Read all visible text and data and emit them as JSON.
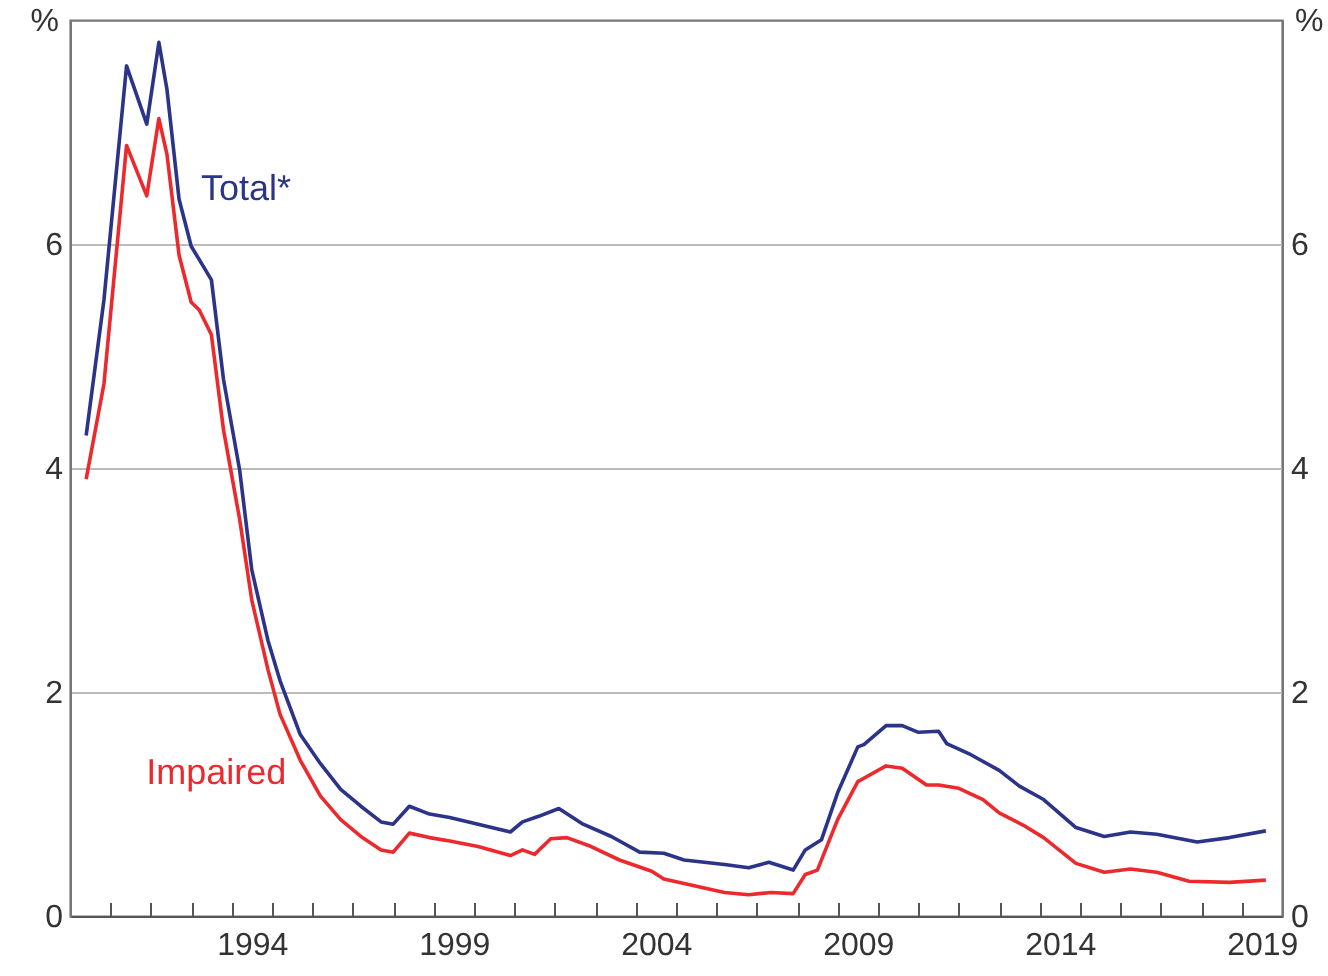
{
  "chart_data": {
    "type": "line",
    "ylabel": "%",
    "y2label": "%",
    "xlim": [
      1990,
      2020
    ],
    "xticks": [
      {
        "value": 1991,
        "label": null
      },
      {
        "value": 1992,
        "label": null
      },
      {
        "value": 1993,
        "label": null
      },
      {
        "value": 1994,
        "label": null
      },
      {
        "value": 1994.5,
        "label": "1994"
      },
      {
        "value": 1995,
        "label": null
      },
      {
        "value": 1996,
        "label": null
      },
      {
        "value": 1997,
        "label": null
      },
      {
        "value": 1998,
        "label": null
      },
      {
        "value": 1999,
        "label": null
      },
      {
        "value": 1999.5,
        "label": "1999"
      },
      {
        "value": 2000,
        "label": null
      },
      {
        "value": 2001,
        "label": null
      },
      {
        "value": 2002,
        "label": null
      },
      {
        "value": 2003,
        "label": null
      },
      {
        "value": 2004,
        "label": null
      },
      {
        "value": 2004.5,
        "label": "2004"
      },
      {
        "value": 2005,
        "label": null
      },
      {
        "value": 2006,
        "label": null
      },
      {
        "value": 2007,
        "label": null
      },
      {
        "value": 2008,
        "label": null
      },
      {
        "value": 2009,
        "label": null
      },
      {
        "value": 2009.5,
        "label": "2009"
      },
      {
        "value": 2010,
        "label": null
      },
      {
        "value": 2011,
        "label": null
      },
      {
        "value": 2012,
        "label": null
      },
      {
        "value": 2013,
        "label": null
      },
      {
        "value": 2014,
        "label": null
      },
      {
        "value": 2014.5,
        "label": "2014"
      },
      {
        "value": 2015,
        "label": null
      },
      {
        "value": 2016,
        "label": null
      },
      {
        "value": 2017,
        "label": null
      },
      {
        "value": 2018,
        "label": null
      },
      {
        "value": 2019,
        "label": null
      },
      {
        "value": 2019.5,
        "label": "2019"
      }
    ],
    "ylim": [
      0,
      8
    ],
    "yticks": [
      0,
      2,
      4,
      6
    ],
    "y2lim": [
      0,
      8
    ],
    "y2ticks": [
      0,
      2,
      4,
      6
    ],
    "grid": "y",
    "series": [
      {
        "name": "Total*",
        "color": "#2b3488",
        "x": [
          1990.4,
          1990.84,
          1991.4,
          1991.9,
          1992.2,
          1992.4,
          1992.7,
          1993.0,
          1993.2,
          1993.5,
          1993.8,
          1994.2,
          1994.5,
          1994.9,
          1995.2,
          1995.7,
          1996.2,
          1996.7,
          1997.2,
          1997.7,
          1998.0,
          1998.4,
          1998.9,
          1999.4,
          2000.1,
          2000.9,
          2001.2,
          2001.6,
          2002.1,
          2002.7,
          2003.4,
          2004.1,
          2004.7,
          2005.2,
          2006.2,
          2006.8,
          2007.3,
          2007.9,
          2008.2,
          2008.6,
          2009.0,
          2009.5,
          2009.65,
          2010.2,
          2010.6,
          2011.0,
          2011.5,
          2011.7,
          2012.3,
          2013.0,
          2013.5,
          2014.1,
          2014.9,
          2015.6,
          2016.25,
          2016.9,
          2017.9,
          2018.7,
          2019.6
        ],
        "values": [
          4.29,
          5.5,
          7.59,
          7.07,
          7.8,
          7.38,
          6.4,
          5.98,
          5.86,
          5.68,
          4.79,
          3.98,
          3.09,
          2.46,
          2.1,
          1.62,
          1.36,
          1.13,
          0.98,
          0.84,
          0.82,
          0.98,
          0.91,
          0.88,
          0.82,
          0.75,
          0.84,
          0.89,
          0.96,
          0.82,
          0.71,
          0.57,
          0.56,
          0.5,
          0.46,
          0.43,
          0.48,
          0.41,
          0.59,
          0.68,
          1.1,
          1.51,
          1.53,
          1.7,
          1.7,
          1.64,
          1.65,
          1.54,
          1.44,
          1.3,
          1.16,
          1.04,
          0.79,
          0.71,
          0.75,
          0.73,
          0.66,
          0.7,
          0.76
        ]
      },
      {
        "name": "Impaired",
        "color": "#ec2a2e",
        "x": [
          1990.4,
          1990.84,
          1991.4,
          1991.9,
          1992.2,
          1992.4,
          1992.7,
          1993.0,
          1993.2,
          1993.5,
          1993.8,
          1994.2,
          1994.5,
          1994.9,
          1995.2,
          1995.7,
          1996.2,
          1996.7,
          1997.2,
          1997.7,
          1998.0,
          1998.4,
          1998.9,
          1999.4,
          2000.1,
          2000.9,
          2001.2,
          2001.5,
          2001.9,
          2002.3,
          2002.9,
          2003.6,
          2004.4,
          2004.7,
          2005.2,
          2006.2,
          2006.8,
          2007.35,
          2007.9,
          2008.2,
          2008.5,
          2009.0,
          2009.5,
          2009.65,
          2010.2,
          2010.6,
          2011.2,
          2011.5,
          2012.0,
          2012.6,
          2013.0,
          2013.6,
          2014.1,
          2014.9,
          2015.6,
          2016.25,
          2016.9,
          2017.7,
          2018.7,
          2019.6
        ],
        "values": [
          3.9,
          4.75,
          6.88,
          6.43,
          7.12,
          6.8,
          5.9,
          5.48,
          5.41,
          5.19,
          4.34,
          3.54,
          2.82,
          2.2,
          1.8,
          1.39,
          1.07,
          0.86,
          0.71,
          0.59,
          0.57,
          0.74,
          0.7,
          0.67,
          0.62,
          0.54,
          0.59,
          0.55,
          0.69,
          0.7,
          0.62,
          0.5,
          0.4,
          0.33,
          0.29,
          0.21,
          0.19,
          0.21,
          0.2,
          0.37,
          0.41,
          0.86,
          1.2,
          1.23,
          1.34,
          1.32,
          1.17,
          1.17,
          1.14,
          1.04,
          0.92,
          0.81,
          0.7,
          0.47,
          0.39,
          0.42,
          0.39,
          0.31,
          0.3,
          0.32
        ]
      }
    ]
  }
}
